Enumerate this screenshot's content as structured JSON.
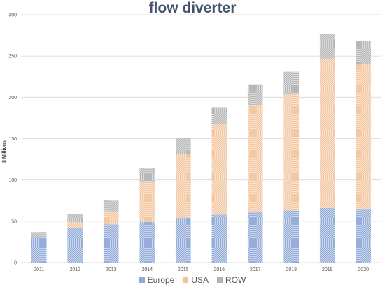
{
  "chart_data": {
    "type": "bar",
    "stacked": true,
    "title": "flow diverter",
    "xlabel": "",
    "ylabel": "$ Millions",
    "ylim": [
      0,
      300
    ],
    "yticks": [
      0,
      50,
      100,
      150,
      200,
      250,
      300
    ],
    "grid": true,
    "legend_position": "bottom",
    "categories": [
      "2011",
      "2012",
      "2013",
      "2014",
      "2015",
      "2016",
      "2017",
      "2018",
      "2019",
      "2020"
    ],
    "series": [
      {
        "name": "Europe",
        "color": "#8fa8d8",
        "values": [
          30,
          42,
          46,
          49,
          54,
          58,
          61,
          63,
          66,
          64
        ]
      },
      {
        "name": "USA",
        "color": "#f2c49b",
        "values": [
          0,
          7,
          16,
          49,
          77,
          109,
          129,
          141,
          181,
          176
        ]
      },
      {
        "name": "ROW",
        "color": "#b3b3b3",
        "values": [
          7,
          10,
          13,
          16,
          20,
          21,
          25,
          27,
          30,
          28
        ]
      }
    ]
  }
}
